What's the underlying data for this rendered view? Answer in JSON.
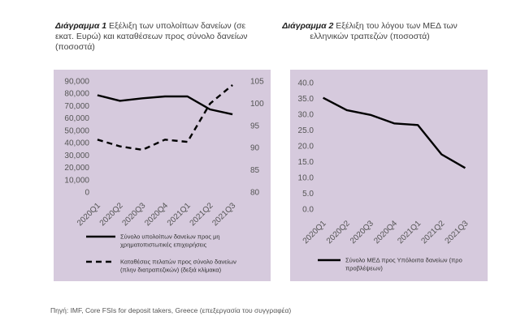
{
  "figure1": {
    "title_bold": "Διάγραμμα 1",
    "title_rest": " Εξέλιξη των υπολοίπων δανείων (σε εκατ. Ευρώ) και καταθέσεων προς σύνολο δανείων (ποσοστά)"
  },
  "figure2": {
    "title_bold": "Διάγραμμα 2",
    "title_rest": " Εξέλιξη του λόγου των ΜΕΔ των ελληνικών τραπεζών (ποσοστά)"
  },
  "source": "Πηγή: IMF, Core FSIs for deposit takers, Greece (επεξεργασία του συγγραφέα)",
  "chart_data": [
    {
      "type": "line",
      "categories": [
        "2020Q1",
        "2020Q2",
        "2020Q3",
        "2020Q4",
        "2021Q1",
        "2021Q2",
        "2021Q3"
      ],
      "y_left": {
        "ylim": [
          0,
          90000
        ],
        "ticks": [
          "0",
          "10,000",
          "20,000",
          "30,000",
          "40,000",
          "50,000",
          "60,000",
          "70,000",
          "80,000",
          "90,000"
        ],
        "tick_values": [
          0,
          10000,
          20000,
          30000,
          40000,
          50000,
          60000,
          70000,
          80000,
          90000
        ]
      },
      "y_right": {
        "ylim": [
          80,
          105
        ],
        "ticks": [
          "80",
          "85",
          "90",
          "95",
          "100",
          "105"
        ],
        "tick_values": [
          80,
          85,
          90,
          95,
          100,
          105
        ]
      },
      "series": [
        {
          "name": "Σύνολο υπολοίπων δανείων προς μη χρηματοπιστωτικές επιχειρήσεις",
          "legend_lines": [
            "Σύνολο υπολοίπων δανείων προς μη",
            "χρηματοπιστωτικές επιχειρήσεις"
          ],
          "axis": "left",
          "style": "solid",
          "color": "#000000",
          "values": [
            78500,
            74000,
            76000,
            77500,
            77500,
            67000,
            63000
          ]
        },
        {
          "name": "Καταθέσεις πελατών προς σύνολο δανείων (πλην διατραπεζικών) (δεξιά κλίμακα)",
          "legend_lines": [
            "Καταθέσεις πελατών προς σύνολο δανείων",
            "(πλην διατραπεζικών) (δεξιά κλίμακα)"
          ],
          "axis": "right",
          "style": "dashed",
          "color": "#000000",
          "values": [
            91.8,
            90.3,
            89.5,
            91.8,
            91.3,
            99.9,
            104.1
          ]
        }
      ],
      "grid": false,
      "legend": "bottom"
    },
    {
      "type": "line",
      "categories": [
        "2020Q1",
        "2020Q2",
        "2020Q3",
        "2020Q4",
        "2021Q1",
        "2021Q2",
        "2021Q3"
      ],
      "y_left": {
        "ylim": [
          0,
          40
        ],
        "ticks": [
          "0.0",
          "5.0",
          "10.0",
          "15.0",
          "20.0",
          "25.0",
          "30.0",
          "35.0",
          "40.0"
        ],
        "tick_values": [
          0,
          5,
          10,
          15,
          20,
          25,
          30,
          35,
          40
        ]
      },
      "series": [
        {
          "name": "Σύνολο ΜΕΔ προς Υπόλοιπα δανείων (προ προβλέψεων)",
          "legend_lines": [
            "Σύνολο ΜΕΔ προς Υπόλοιπα δανείων (προ",
            "προβλέψεων)"
          ],
          "axis": "left",
          "style": "solid",
          "color": "#000000",
          "values": [
            35.2,
            31.3,
            29.8,
            27.1,
            26.6,
            17.3,
            13.0
          ]
        }
      ],
      "grid": false,
      "legend": "bottom"
    }
  ]
}
